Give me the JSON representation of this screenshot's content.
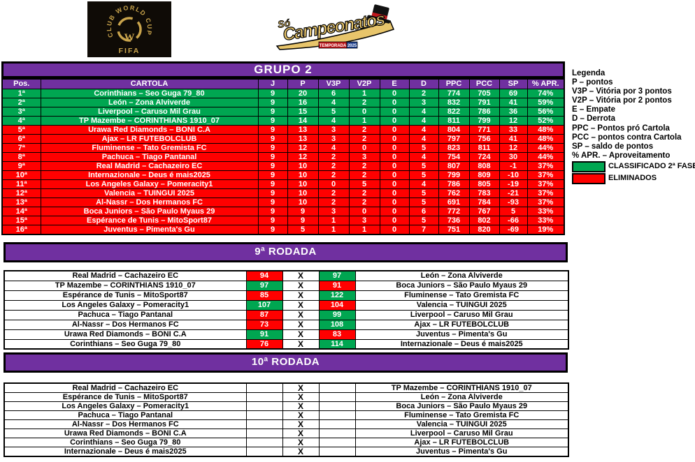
{
  "colors": {
    "purple": "#7030A0",
    "green": "#00A651",
    "red": "#FF0000",
    "gold": "#D9B25F",
    "black": "#000000",
    "white": "#FFFFFF"
  },
  "logos": {
    "fifa": {
      "circle_text": "CLUB WORLD CUP 25",
      "emblem_letter": "W",
      "bottom_text": "FIFA"
    },
    "soc": {
      "top": "Só",
      "main": "Campeonatos",
      "badge_temporada": "TEMPORADA",
      "badge_year": "2025"
    }
  },
  "standings": {
    "title": "GRUPO 2",
    "columns": [
      "Pos.",
      "CARTOLA",
      "J",
      "P",
      "V3P",
      "V2P",
      "E",
      "D",
      "PPC",
      "PCC",
      "SP",
      "% APR."
    ],
    "rows": [
      {
        "pos": "1ª",
        "team": "Corinthians – Seo Guga 79_80",
        "j": "9",
        "p": "20",
        "v3p": "6",
        "v2p": "1",
        "e": "0",
        "d": "2",
        "ppc": "774",
        "pcc": "705",
        "sp": "69",
        "apr": "74%",
        "status": "classified"
      },
      {
        "pos": "2ª",
        "team": "León – Zona Alviverde",
        "j": "9",
        "p": "16",
        "v3p": "4",
        "v2p": "2",
        "e": "0",
        "d": "3",
        "ppc": "832",
        "pcc": "791",
        "sp": "41",
        "apr": "59%",
        "status": "classified"
      },
      {
        "pos": "3ª",
        "team": "Liverpool – Caruso Mil Grau",
        "j": "9",
        "p": "15",
        "v3p": "5",
        "v2p": "0",
        "e": "0",
        "d": "4",
        "ppc": "822",
        "pcc": "786",
        "sp": "36",
        "apr": "56%",
        "status": "classified"
      },
      {
        "pos": "4ª",
        "team": "TP Mazembe – CORINTHIANS 1910_07",
        "j": "9",
        "p": "14",
        "v3p": "4",
        "v2p": "1",
        "e": "0",
        "d": "4",
        "ppc": "811",
        "pcc": "799",
        "sp": "12",
        "apr": "52%",
        "status": "classified"
      },
      {
        "pos": "5ª",
        "team": "Urawa Red Diamonds – BONI C.A",
        "j": "9",
        "p": "13",
        "v3p": "3",
        "v2p": "2",
        "e": "0",
        "d": "4",
        "ppc": "804",
        "pcc": "771",
        "sp": "33",
        "apr": "48%",
        "status": "eliminated"
      },
      {
        "pos": "6ª",
        "team": "Ajax – LR FUTEBOLCLUB",
        "j": "9",
        "p": "13",
        "v3p": "3",
        "v2p": "2",
        "e": "0",
        "d": "4",
        "ppc": "797",
        "pcc": "756",
        "sp": "41",
        "apr": "48%",
        "status": "eliminated"
      },
      {
        "pos": "7ª",
        "team": "Fluminense –  Tato Gremista FC",
        "j": "9",
        "p": "12",
        "v3p": "4",
        "v2p": "0",
        "e": "0",
        "d": "5",
        "ppc": "823",
        "pcc": "811",
        "sp": "12",
        "apr": "44%",
        "status": "eliminated"
      },
      {
        "pos": "8ª",
        "team": "Pachuca – Tiago Pantanal",
        "j": "9",
        "p": "12",
        "v3p": "2",
        "v2p": "3",
        "e": "0",
        "d": "4",
        "ppc": "754",
        "pcc": "724",
        "sp": "30",
        "apr": "44%",
        "status": "eliminated"
      },
      {
        "pos": "9ª",
        "team": "Real Madrid – Cachazeiro EC",
        "j": "9",
        "p": "10",
        "v3p": "2",
        "v2p": "2",
        "e": "0",
        "d": "5",
        "ppc": "807",
        "pcc": "808",
        "sp": "-1",
        "apr": "37%",
        "status": "eliminated"
      },
      {
        "pos": "10ª",
        "team": "Internazionale – Deus é mais2025",
        "j": "9",
        "p": "10",
        "v3p": "2",
        "v2p": "2",
        "e": "0",
        "d": "5",
        "ppc": "799",
        "pcc": "809",
        "sp": "-10",
        "apr": "37%",
        "status": "eliminated"
      },
      {
        "pos": "11ª",
        "team": "Los Angeles Galaxy – Pomeracity1",
        "j": "9",
        "p": "10",
        "v3p": "0",
        "v2p": "5",
        "e": "0",
        "d": "4",
        "ppc": "786",
        "pcc": "805",
        "sp": "-19",
        "apr": "37%",
        "status": "eliminated"
      },
      {
        "pos": "12ª",
        "team": "Valencia – TUINGUI 2025",
        "j": "9",
        "p": "10",
        "v3p": "2",
        "v2p": "2",
        "e": "0",
        "d": "5",
        "ppc": "762",
        "pcc": "783",
        "sp": "-21",
        "apr": "37%",
        "status": "eliminated"
      },
      {
        "pos": "13ª",
        "team": "Al-Nassr – Dos Hermanos FC",
        "j": "9",
        "p": "10",
        "v3p": "2",
        "v2p": "2",
        "e": "0",
        "d": "5",
        "ppc": "691",
        "pcc": "784",
        "sp": "-93",
        "apr": "37%",
        "status": "eliminated"
      },
      {
        "pos": "14ª",
        "team": "Boca Juniors – São Paulo Myaus 29",
        "j": "9",
        "p": "9",
        "v3p": "3",
        "v2p": "0",
        "e": "0",
        "d": "6",
        "ppc": "772",
        "pcc": "767",
        "sp": "5",
        "apr": "33%",
        "status": "eliminated"
      },
      {
        "pos": "15ª",
        "team": "Espérance de Tunis – MitoSport87",
        "j": "9",
        "p": "9",
        "v3p": "1",
        "v2p": "3",
        "e": "0",
        "d": "5",
        "ppc": "736",
        "pcc": "802",
        "sp": "-66",
        "apr": "33%",
        "status": "eliminated"
      },
      {
        "pos": "16ª",
        "team": "Juventus – Pimenta's Gu",
        "j": "9",
        "p": "5",
        "v3p": "1",
        "v2p": "1",
        "e": "0",
        "d": "7",
        "ppc": "751",
        "pcc": "820",
        "sp": "-69",
        "apr": "19%",
        "status": "eliminated"
      }
    ]
  },
  "legend": {
    "title": "Legenda",
    "items": [
      "P – pontos",
      "V3P – Vitória por 3 pontos",
      "V2P – Vitória por 2 pontos",
      "E – Empate",
      "D – Derrota",
      "PPC – Pontos pró Cartola",
      "PCC – pontos contra Cartola",
      "SP – saldo de pontos",
      "% APR. – Aproveitamento"
    ],
    "classified_label": "CLASSIFICADO 2ª FASE",
    "eliminated_label": "ELIMINADOS"
  },
  "rounds": [
    {
      "title": "9ª RODADA",
      "x": "X",
      "matches": [
        {
          "home": "Real Madrid – Cachazeiro EC",
          "home_score": "94",
          "home_color": "red",
          "away_score": "97",
          "away_color": "green",
          "away": "León – Zona Alviverde"
        },
        {
          "home": "TP Mazembe – CORINTHIANS 1910_07",
          "home_score": "97",
          "home_color": "green",
          "away_score": "91",
          "away_color": "red",
          "away": "Boca Juniors – São Paulo Myaus 29"
        },
        {
          "home": "Espérance de Tunis – MitoSport87",
          "home_score": "85",
          "home_color": "red",
          "away_score": "122",
          "away_color": "green",
          "away": "Fluminense –  Tato Gremista FC"
        },
        {
          "home": "Los Angeles Galaxy – Pomeracity1",
          "home_score": "107",
          "home_color": "green",
          "away_score": "104",
          "away_color": "red",
          "away": "Valencia – TUINGUI 2025"
        },
        {
          "home": "Pachuca – Tiago Pantanal",
          "home_score": "87",
          "home_color": "red",
          "away_score": "99",
          "away_color": "green",
          "away": "Liverpool – Caruso Mil Grau"
        },
        {
          "home": "Al-Nassr – Dos Hermanos FC",
          "home_score": "73",
          "home_color": "red",
          "away_score": "108",
          "away_color": "green",
          "away": "Ajax – LR FUTEBOLCLUB"
        },
        {
          "home": "Urawa Red Diamonds – BONI C.A",
          "home_score": "91",
          "home_color": "green",
          "away_score": "83",
          "away_color": "red",
          "away": "Juventus – Pimenta's Gu"
        },
        {
          "home": "Corinthians – Seo Guga 79_80",
          "home_score": "76",
          "home_color": "red",
          "away_score": "114",
          "away_color": "green",
          "away": "Internazionale – Deus é mais2025"
        }
      ]
    },
    {
      "title": "10ª RODADA",
      "x": "X",
      "matches": [
        {
          "home": "Real Madrid – Cachazeiro EC",
          "home_score": "",
          "home_color": "",
          "away_score": "",
          "away_color": "",
          "away": "TP Mazembe – CORINTHIANS 1910_07"
        },
        {
          "home": "Espérance de Tunis – MitoSport87",
          "home_score": "",
          "home_color": "",
          "away_score": "",
          "away_color": "",
          "away": "León – Zona Alviverde"
        },
        {
          "home": "Los Angeles Galaxy – Pomeracity1",
          "home_score": "",
          "home_color": "",
          "away_score": "",
          "away_color": "",
          "away": "Boca Juniors – São Paulo Myaus 29"
        },
        {
          "home": "Pachuca – Tiago Pantanal",
          "home_score": "",
          "home_color": "",
          "away_score": "",
          "away_color": "",
          "away": "Fluminense –  Tato Gremista FC"
        },
        {
          "home": "Al-Nassr – Dos Hermanos FC",
          "home_score": "",
          "home_color": "",
          "away_score": "",
          "away_color": "",
          "away": "Valencia – TUINGUI 2025"
        },
        {
          "home": "Urawa Red Diamonds – BONI C.A",
          "home_score": "",
          "home_color": "",
          "away_score": "",
          "away_color": "",
          "away": "Liverpool – Caruso Mil Grau"
        },
        {
          "home": "Corinthians – Seo Guga 79_80",
          "home_score": "",
          "home_color": "",
          "away_score": "",
          "away_color": "",
          "away": "Ajax – LR FUTEBOLCLUB"
        },
        {
          "home": "Internazionale – Deus é mais2025",
          "home_score": "",
          "home_color": "",
          "away_score": "",
          "away_color": "",
          "away": "Juventus – Pimenta's Gu"
        }
      ]
    }
  ]
}
